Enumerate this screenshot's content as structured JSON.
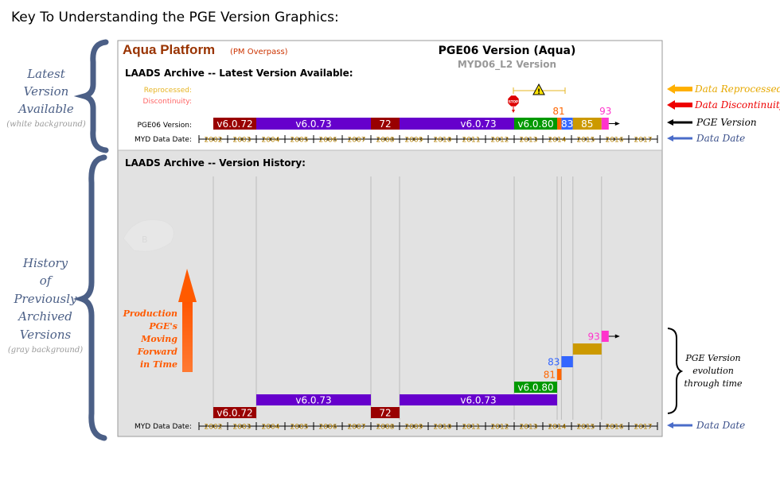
{
  "page": {
    "title": "Key To Understanding the PGE Version Graphics:"
  },
  "left_brackets": {
    "latest": {
      "lines": [
        "Latest",
        "Version",
        "Available"
      ],
      "note": "(white background)"
    },
    "history": {
      "lines": [
        "History",
        "of",
        "Previously",
        "Archived",
        "Versions"
      ],
      "note": "(gray background)"
    }
  },
  "header": {
    "platform": "Aqua Platform",
    "overpass": "(PM Overpass)",
    "pge_title": "PGE06 Version (Aqua)",
    "product": "MYD06_L2 Version"
  },
  "latest_section": {
    "heading": "LAADS Archive -- Latest Version Available:",
    "reprocessed_label": "Reprocessed:",
    "discontinuity_label": "Discontinuity:",
    "version_row_label": "PGE06 Version:",
    "date_row_label": "MYD Data Date:",
    "stop_icon": "stop-sign-icon",
    "warning_icon": "warning-triangle-icon"
  },
  "history_section": {
    "heading": "LAADS Archive -- Version History:",
    "date_row_label": "MYD Data Date:",
    "production_note": [
      "Production",
      "PGE's",
      "Moving",
      "Forward",
      "in Time"
    ]
  },
  "years": [
    "2002",
    "2003",
    "2004",
    "2005",
    "2006",
    "2007",
    "2008",
    "2009",
    "2010",
    "2011",
    "2012",
    "2013",
    "2014",
    "2015",
    "2016",
    "2017"
  ],
  "versions": [
    {
      "label": "v6.0.72",
      "start": 2002.0,
      "end": 2003.5,
      "color": "#990000",
      "text_color": "#ffffff",
      "level": 0
    },
    {
      "label": "v6.0.73",
      "start": 2003.5,
      "end": 2007.5,
      "color": "#6600cc",
      "text_color": "#ffffff",
      "level": 1
    },
    {
      "label": "72",
      "start": 2007.5,
      "end": 2008.5,
      "color": "#990000",
      "text_color": "#ffffff",
      "level": 0
    },
    {
      "label": "v6.0.73",
      "start": 2008.5,
      "end": 2014.0,
      "color": "#6600cc",
      "text_color": "#ffffff",
      "level": 1
    },
    {
      "label": "v6.0.80",
      "start": 2012.5,
      "end": 2014.0,
      "color": "#009900",
      "text_color": "#ffffff",
      "level": 2
    },
    {
      "label": "81",
      "start": 2014.0,
      "end": 2014.15,
      "color": "#ff6600",
      "text_color": "#ff6600",
      "level": 3
    },
    {
      "label": "83",
      "start": 2014.15,
      "end": 2014.55,
      "color": "#3366ff",
      "text_color": "#3366ff",
      "level": 4
    },
    {
      "label": "85",
      "start": 2014.55,
      "end": 2015.55,
      "color": "#cc9900",
      "text_color": "#cc9900",
      "level": 5
    },
    {
      "label": "93",
      "start": 2015.55,
      "end": 2015.8,
      "color": "#ff33cc",
      "text_color": "#ff33cc",
      "level": 6
    }
  ],
  "right_legend": [
    {
      "label": "Data Reprocessed",
      "color": "#ffb000"
    },
    {
      "label": "Data Discontinuity",
      "color": "#ee0000"
    },
    {
      "label": "PGE Version",
      "color": "#000000"
    },
    {
      "label": "Data Date",
      "color": "#4a6cc9"
    }
  ],
  "right_history": {
    "lines": [
      "PGE Version",
      "evolution",
      "through time"
    ],
    "date_label": "Data Date"
  }
}
